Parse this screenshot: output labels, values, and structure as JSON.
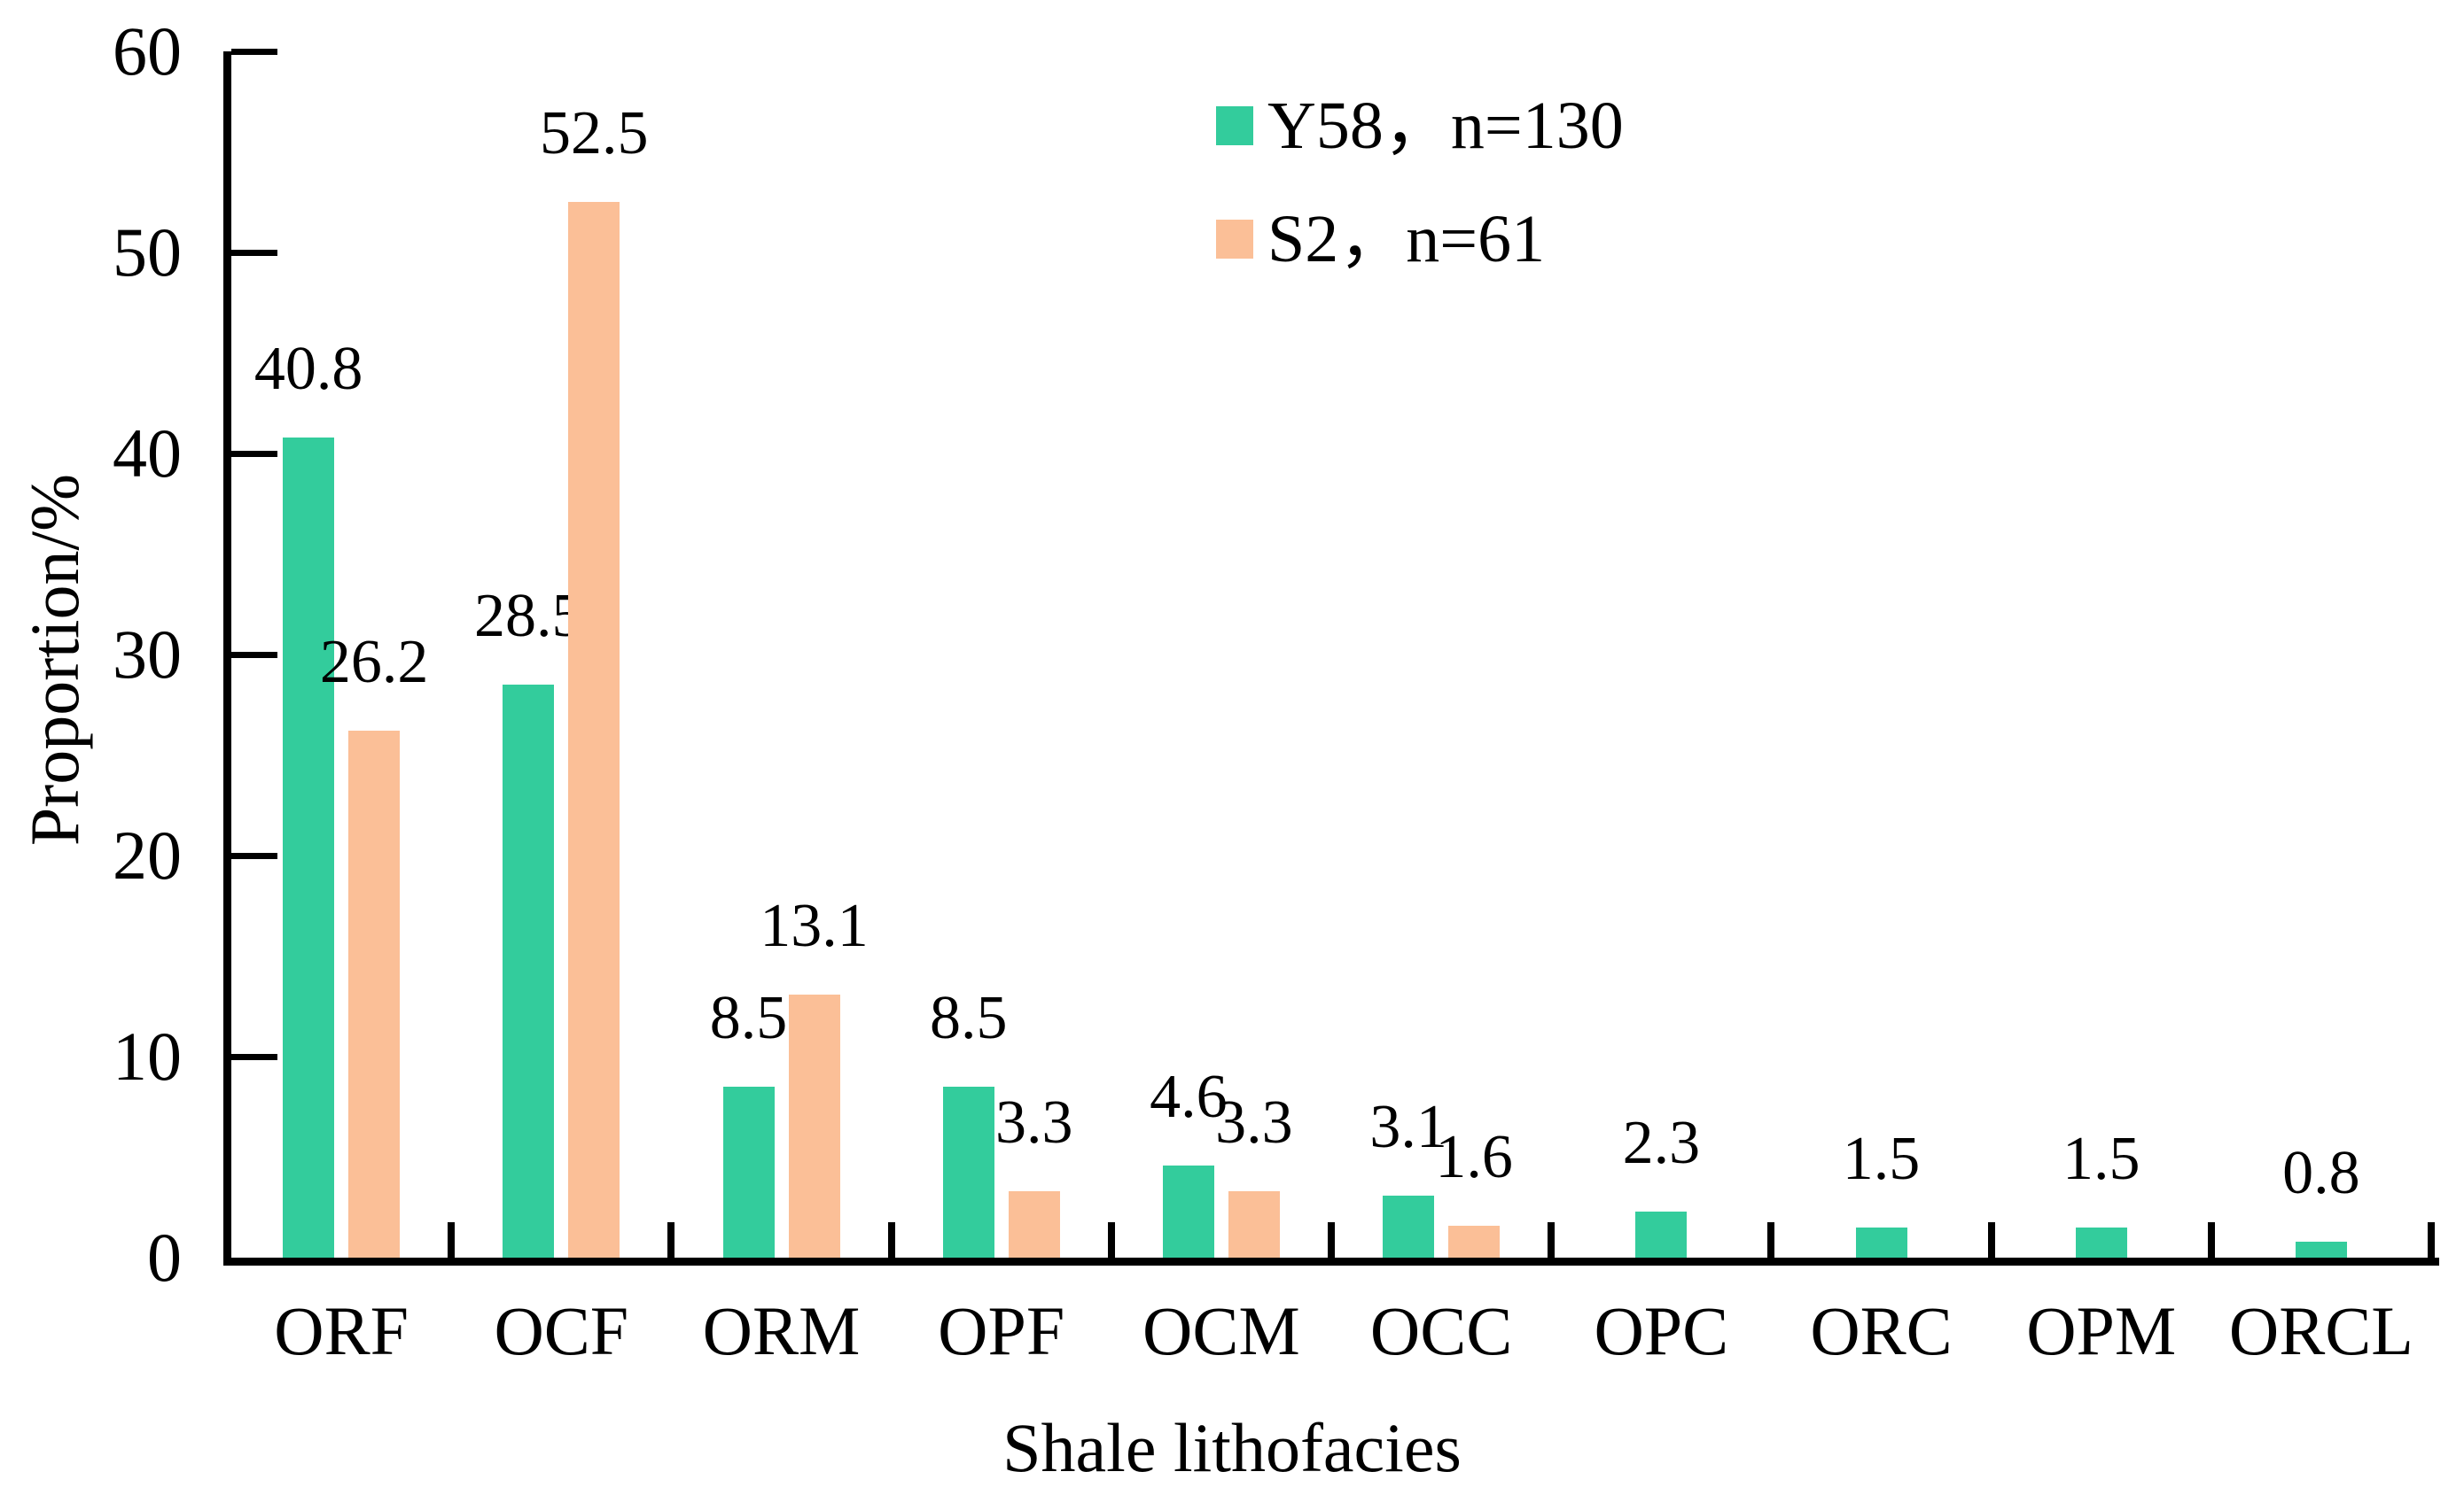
{
  "figure": {
    "x_axis_title": "Shale lithofacies",
    "y_axis_title": "Proportion/%"
  },
  "legend": {
    "items": [
      {
        "label": "Y58，n=130",
        "color": "#33CC9C"
      },
      {
        "label": "S2，n=61",
        "color": "#FBBF97"
      }
    ]
  },
  "chart_data": {
    "type": "bar",
    "title": "",
    "xlabel": "Shale lithofacies",
    "ylabel": "Proportion/%",
    "categories": [
      "ORF",
      "OCF",
      "ORM",
      "OPF",
      "OCM",
      "OCC",
      "OPC",
      "ORC",
      "OPM",
      "ORCL"
    ],
    "series": [
      {
        "name": "Y58，n=130",
        "color": "#33CC9C",
        "values": [
          40.8,
          28.5,
          8.5,
          8.5,
          4.6,
          3.1,
          2.3,
          1.5,
          1.5,
          0.8
        ]
      },
      {
        "name": "S2，n=61",
        "color": "#FBBF97",
        "values": [
          26.2,
          52.5,
          13.1,
          3.3,
          3.3,
          1.6,
          null,
          null,
          null,
          null
        ]
      }
    ],
    "ylim": [
      0,
      60
    ],
    "yticks": [
      0,
      10,
      20,
      30,
      40,
      50,
      60
    ],
    "grid": false,
    "data_labels": true,
    "legend_position": "upper-center",
    "bar_colors": {
      "Y58": "#33CC9C",
      "S2": "#FBBF97"
    },
    "axis_color": "#000000"
  }
}
